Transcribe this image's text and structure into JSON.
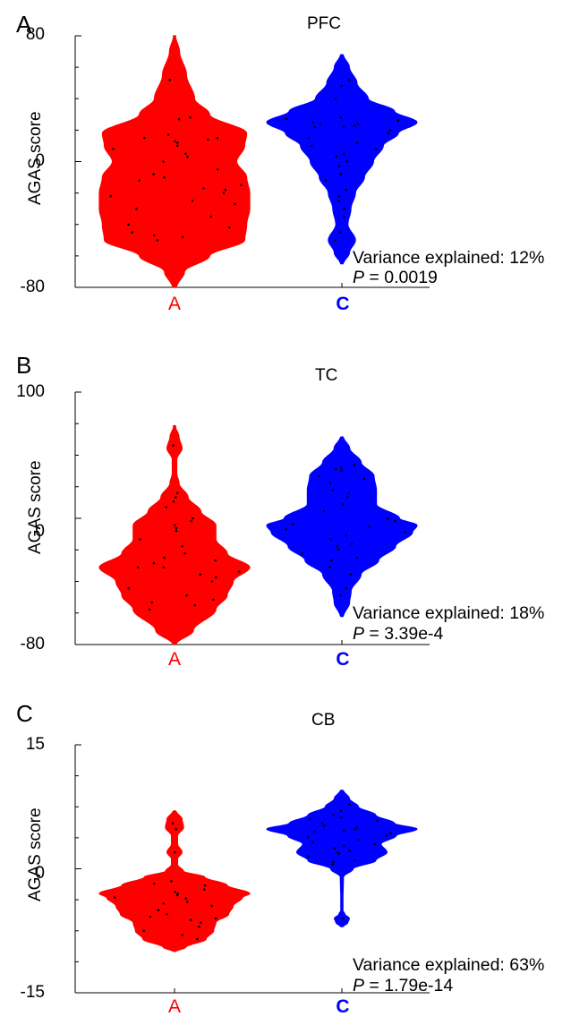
{
  "chart_data": [
    {
      "type": "violin",
      "panel_letter": "A",
      "title": "PFC",
      "ylabel": "AGAS score",
      "ylim": [
        -80,
        80
      ],
      "yticks": [
        "80",
        "0",
        "-80"
      ],
      "categories": [
        "A",
        "C"
      ],
      "colors": {
        "A": "#ff0000",
        "C": "#0000ff"
      },
      "stats": {
        "variance_label": "Variance explained: 12%",
        "p_label": "P",
        "p_value": " = 0.0019"
      },
      "series": [
        {
          "category": "A",
          "points": [
            52,
            28,
            27,
            17,
            15,
            15,
            14,
            13,
            12,
            10,
            8,
            5,
            3,
            0,
            -5,
            -8,
            -10,
            -12,
            -15,
            -17,
            -18,
            -20,
            -22,
            -25,
            -27,
            -30,
            -35,
            -40,
            -42,
            -45,
            -47,
            -48,
            -50
          ],
          "density": [
            [
              -80,
              0.02
            ],
            [
              -70,
              0.1
            ],
            [
              -60,
              0.35
            ],
            [
              -50,
              0.7
            ],
            [
              -40,
              0.72
            ],
            [
              -30,
              0.75
            ],
            [
              -20,
              0.75
            ],
            [
              -10,
              0.72
            ],
            [
              0,
              0.62
            ],
            [
              10,
              0.7
            ],
            [
              18,
              0.72
            ],
            [
              30,
              0.35
            ],
            [
              40,
              0.2
            ],
            [
              55,
              0.12
            ],
            [
              70,
              0.05
            ],
            [
              80,
              0.01
            ]
          ]
        },
        {
          "category": "C",
          "points": [
            52,
            48,
            40,
            28,
            27,
            26,
            25,
            24,
            24,
            23,
            22,
            22,
            20,
            18,
            15,
            12,
            10,
            8,
            5,
            3,
            0,
            -3,
            -8,
            -12,
            -18,
            -22,
            -25,
            -30,
            -35,
            -45,
            -50
          ],
          "density": [
            [
              -65,
              0.02
            ],
            [
              -58,
              0.1
            ],
            [
              -50,
              0.18
            ],
            [
              -40,
              0.08
            ],
            [
              -30,
              0.12
            ],
            [
              -20,
              0.18
            ],
            [
              -10,
              0.3
            ],
            [
              0,
              0.42
            ],
            [
              10,
              0.55
            ],
            [
              18,
              0.75
            ],
            [
              25,
              1.0
            ],
            [
              32,
              0.7
            ],
            [
              40,
              0.35
            ],
            [
              50,
              0.2
            ],
            [
              60,
              0.1
            ],
            [
              68,
              0.02
            ]
          ]
        }
      ]
    },
    {
      "type": "violin",
      "panel_letter": "B",
      "title": "TC",
      "ylabel": "AGAS score",
      "ylim": [
        -80,
        100
      ],
      "yticks": [
        "100",
        "0",
        "-80"
      ],
      "categories": [
        "A",
        "C"
      ],
      "colors": {
        "A": "#ff0000",
        "C": "#0000ff"
      },
      "stats": {
        "variance_label": "Variance explained: 18%",
        "p_label": "P",
        "p_value": " = 3.39e-4"
      },
      "series": [
        {
          "category": "A",
          "points": [
            62,
            28,
            25,
            22,
            18,
            10,
            8,
            5,
            3,
            1,
            -5,
            -10,
            -15,
            -18,
            -20,
            -22,
            -25,
            -25,
            -28,
            -30,
            -32,
            -35,
            -40,
            -45,
            -48,
            -50,
            -52,
            -55
          ],
          "density": [
            [
              -80,
              0.02
            ],
            [
              -70,
              0.25
            ],
            [
              -55,
              0.55
            ],
            [
              -45,
              0.7
            ],
            [
              -35,
              0.78
            ],
            [
              -25,
              1.0
            ],
            [
              -15,
              0.7
            ],
            [
              -5,
              0.55
            ],
            [
              5,
              0.55
            ],
            [
              15,
              0.35
            ],
            [
              25,
              0.18
            ],
            [
              35,
              0.06
            ],
            [
              42,
              0.03
            ],
            [
              52,
              0.03
            ],
            [
              60,
              0.1
            ],
            [
              68,
              0.06
            ],
            [
              76,
              0.01
            ]
          ]
        },
        {
          "category": "C",
          "points": [
            48,
            46,
            45,
            44,
            40,
            38,
            35,
            30,
            28,
            25,
            20,
            15,
            10,
            8,
            6,
            4,
            2,
            0,
            -2,
            -5,
            -8,
            -10,
            -12,
            -15,
            -18,
            -20,
            -25,
            -30,
            -40,
            -45
          ],
          "density": [
            [
              -60,
              0.02
            ],
            [
              -50,
              0.1
            ],
            [
              -42,
              0.12
            ],
            [
              -30,
              0.25
            ],
            [
              -20,
              0.48
            ],
            [
              -10,
              0.7
            ],
            [
              0,
              0.92
            ],
            [
              5,
              0.98
            ],
            [
              10,
              0.75
            ],
            [
              20,
              0.45
            ],
            [
              30,
              0.45
            ],
            [
              40,
              0.42
            ],
            [
              50,
              0.25
            ],
            [
              60,
              0.1
            ],
            [
              68,
              0.02
            ]
          ]
        }
      ]
    },
    {
      "type": "violin",
      "panel_letter": "C",
      "title": "CB",
      "ylabel": "AGAS score",
      "ylim": [
        -15,
        15
      ],
      "yticks": [
        "15",
        "0",
        "-15"
      ],
      "categories": [
        "A",
        "C"
      ],
      "colors": {
        "A": "#ff0000",
        "C": "#0000ff"
      },
      "stats": {
        "variance_label": "Variance explained: 63%",
        "p_label": "P",
        "p_value": " = 1.79e-14"
      },
      "series": [
        {
          "category": "A",
          "points": [
            5.5,
            4.8,
            2.0,
            -1.5,
            -1.8,
            -2.0,
            -2.5,
            -2.8,
            -3.0,
            -3.2,
            -3.5,
            -3.6,
            -4.0,
            -4.2,
            -4.5,
            -5.0,
            -5.5,
            -5.8,
            -6.0,
            -6.2,
            -6.5,
            -7.0,
            -7.5,
            -8.0,
            -8.5
          ],
          "density": [
            [
              -10,
              0.02
            ],
            [
              -9.5,
              0.15
            ],
            [
              -8.5,
              0.42
            ],
            [
              -7.5,
              0.52
            ],
            [
              -6.5,
              0.55
            ],
            [
              -5.5,
              0.72
            ],
            [
              -4.5,
              0.78
            ],
            [
              -3.5,
              0.9
            ],
            [
              -3.0,
              1.0
            ],
            [
              -2.0,
              0.7
            ],
            [
              -1.0,
              0.4
            ],
            [
              -0.3,
              0.12
            ],
            [
              0.5,
              0.04
            ],
            [
              1.2,
              0.04
            ],
            [
              2.0,
              0.1
            ],
            [
              3.0,
              0.04
            ],
            [
              4.0,
              0.04
            ],
            [
              5.0,
              0.12
            ],
            [
              6.0,
              0.1
            ],
            [
              7.0,
              0.02
            ]
          ]
        },
        {
          "category": "C",
          "points": [
            7.8,
            7.0,
            6.5,
            6.2,
            6.0,
            5.8,
            5.5,
            5.2,
            5.0,
            4.8,
            4.6,
            4.5,
            4.3,
            4.0,
            3.8,
            3.5,
            3.2,
            3.0,
            2.8,
            2.5,
            2.2,
            2.0,
            1.8,
            1.5,
            1.0,
            0.8,
            0.5,
            -6.0
          ],
          "density": [
            [
              -7.0,
              0.02
            ],
            [
              -6.5,
              0.08
            ],
            [
              -6.0,
              0.1
            ],
            [
              -5.5,
              0.04
            ],
            [
              -5.0,
              0.01
            ],
            [
              -1.0,
              0.02
            ],
            [
              0.0,
              0.15
            ],
            [
              1.0,
              0.45
            ],
            [
              2.0,
              0.6
            ],
            [
              3.0,
              0.52
            ],
            [
              4.0,
              0.72
            ],
            [
              4.8,
              1.0
            ],
            [
              5.5,
              0.7
            ],
            [
              6.5,
              0.45
            ],
            [
              7.5,
              0.22
            ],
            [
              8.5,
              0.1
            ],
            [
              9.5,
              0.02
            ]
          ]
        }
      ]
    }
  ]
}
